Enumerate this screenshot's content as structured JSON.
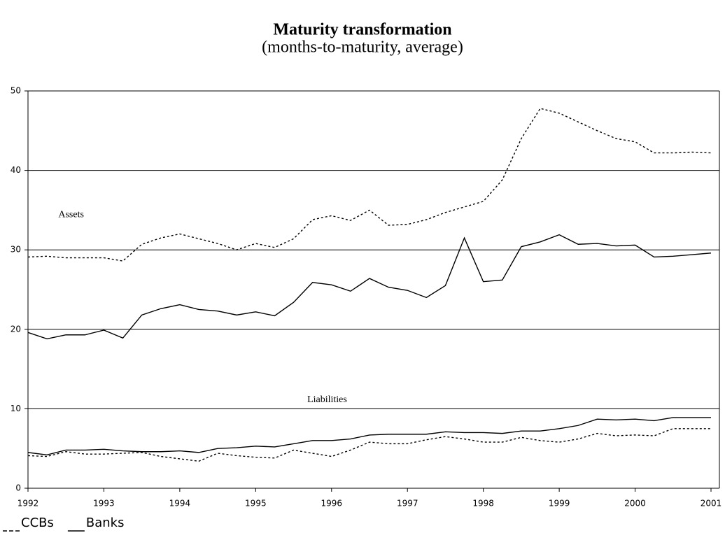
{
  "chart_data": {
    "type": "line",
    "title": "Maturity transformation",
    "subtitle": "(months-to-maturity, average)",
    "x": [
      1992,
      1992.25,
      1992.5,
      1992.75,
      1993,
      1993.25,
      1993.5,
      1993.75,
      1994,
      1994.25,
      1994.5,
      1994.75,
      1995,
      1995.25,
      1995.5,
      1995.75,
      1996,
      1996.25,
      1996.5,
      1996.75,
      1997,
      1997.25,
      1997.5,
      1997.75,
      1998,
      1998.25,
      1998.5,
      1998.75,
      1999,
      1999.25,
      1999.5,
      1999.75,
      2000,
      2000.25,
      2000.5,
      2000.75,
      2001
    ],
    "xlim": [
      1992,
      2001
    ],
    "xticks": [
      1992,
      1993,
      1994,
      1995,
      1996,
      1997,
      1998,
      1999,
      2000,
      2001
    ],
    "ylim": [
      0,
      50
    ],
    "yticks": [
      0,
      10,
      20,
      30,
      40,
      50
    ],
    "grid": true,
    "color": "#000000",
    "legend": [
      {
        "name": "CCBs",
        "style": "dotted"
      },
      {
        "name": "Banks",
        "style": "solid"
      }
    ],
    "series": [
      {
        "style": "dotted",
        "values": [
          29.1,
          29.2,
          29.0,
          29.0,
          29.0,
          28.6,
          30.7,
          31.5,
          32.0,
          31.4,
          30.8,
          30.0,
          30.8,
          30.3,
          31.4,
          33.8,
          34.3,
          33.7,
          35.0,
          33.1,
          33.2,
          33.8,
          34.7,
          35.4,
          36.1,
          38.8,
          44.0,
          47.8,
          47.2,
          46.1,
          45.0,
          44.0,
          43.6,
          42.2,
          42.2,
          42.3,
          42.2
        ]
      },
      {
        "style": "solid",
        "values": [
          19.6,
          18.8,
          19.3,
          19.3,
          19.9,
          18.9,
          21.8,
          22.6,
          23.1,
          22.5,
          22.3,
          21.8,
          22.2,
          21.7,
          23.4,
          25.9,
          25.6,
          24.8,
          26.4,
          25.3,
          24.9,
          24.0,
          25.5,
          31.5,
          26.0,
          26.2,
          30.4,
          31.0,
          31.9,
          30.7,
          30.8,
          30.5,
          30.6,
          29.1,
          29.2,
          29.4,
          29.6
        ]
      },
      {
        "style": "dotted",
        "values": [
          4.1,
          4.0,
          4.6,
          4.3,
          4.3,
          4.4,
          4.5,
          4.0,
          3.7,
          3.4,
          4.4,
          4.1,
          3.9,
          3.8,
          4.8,
          4.4,
          4.0,
          4.8,
          5.8,
          5.6,
          5.6,
          6.1,
          6.5,
          6.2,
          5.8,
          5.8,
          6.4,
          6.0,
          5.8,
          6.2,
          6.9,
          6.6,
          6.7,
          6.6,
          7.5,
          7.5,
          7.5
        ]
      },
      {
        "style": "solid",
        "values": [
          4.5,
          4.2,
          4.8,
          4.8,
          4.9,
          4.7,
          4.6,
          4.6,
          4.7,
          4.5,
          5.0,
          5.1,
          5.3,
          5.2,
          5.6,
          6.0,
          6.0,
          6.2,
          6.7,
          6.8,
          6.8,
          6.8,
          7.1,
          7.0,
          7.0,
          6.9,
          7.2,
          7.2,
          7.5,
          7.9,
          8.7,
          8.6,
          8.7,
          8.5,
          8.9,
          8.9,
          8.9
        ]
      }
    ],
    "annotations": [
      {
        "text": "Assets",
        "x": 1992.4,
        "y": 34.4
      },
      {
        "text": "Liabilities",
        "x": 1995.68,
        "y": 11.1
      }
    ]
  }
}
